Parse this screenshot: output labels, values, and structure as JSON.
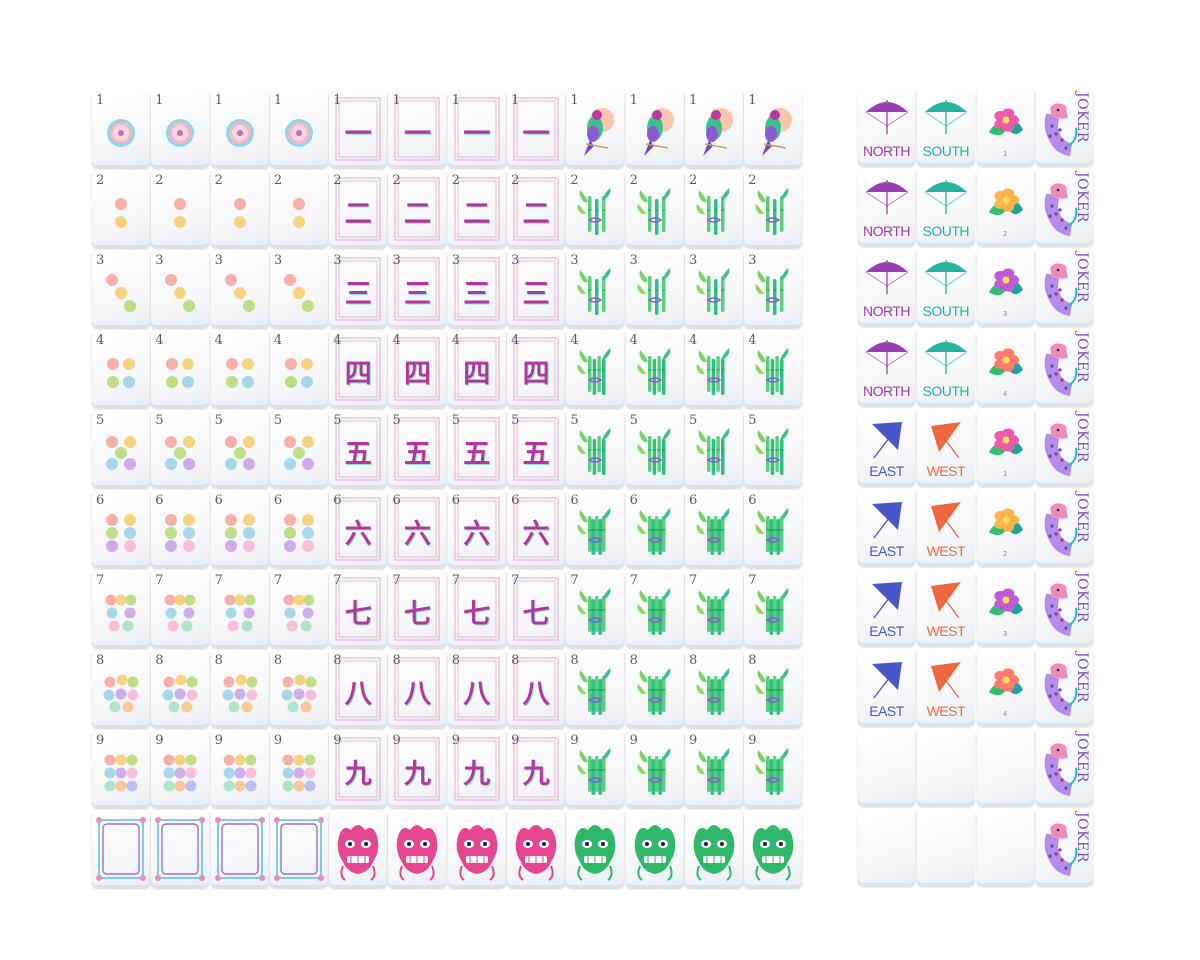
{
  "colors": {
    "tile_face": "#f6f7f9",
    "bamboo_green": "#36c47a",
    "character_pink": "#b2369b",
    "dragon_pink": "#e4478f",
    "dragon_green": "#2fb86a",
    "north_south_purple": "#9b3fb0",
    "south_teal": "#28b3a0",
    "east_blue": "#4a56c8",
    "west_orange": "#f06a3f"
  },
  "main_grid": {
    "dots": {
      "numbers": [
        "1",
        "2",
        "3",
        "4",
        "5",
        "6",
        "7",
        "8",
        "9"
      ],
      "copies": 4
    },
    "characters": {
      "numbers": [
        "1",
        "2",
        "3",
        "4",
        "5",
        "6",
        "7",
        "8",
        "9"
      ],
      "glyphs": [
        "一",
        "二",
        "三",
        "四",
        "五",
        "六",
        "七",
        "八",
        "九"
      ],
      "copies": 4
    },
    "bamboo": {
      "numbers": [
        "1",
        "2",
        "3",
        "4",
        "5",
        "6",
        "7",
        "8",
        "9"
      ],
      "one_icon": "parrot-icon",
      "icon": "bamboo-icon",
      "copies": 4
    },
    "dragons": [
      {
        "kind": "white-dragon",
        "icon": "frame-icon",
        "copies": 4
      },
      {
        "kind": "red-dragon",
        "icon": "dragon-face-icon",
        "color": "#e4478f",
        "copies": 4
      },
      {
        "kind": "green-dragon",
        "icon": "dragon-face-icon",
        "color": "#2fb86a",
        "copies": 4
      }
    ]
  },
  "side_grid": {
    "rows": [
      {
        "wind1": "NORTH",
        "wind2": "SOUTH",
        "flower_num": "1",
        "joker": "JOKER"
      },
      {
        "wind1": "NORTH",
        "wind2": "SOUTH",
        "flower_num": "2",
        "joker": "JOKER"
      },
      {
        "wind1": "NORTH",
        "wind2": "SOUTH",
        "flower_num": "3",
        "joker": "JOKER"
      },
      {
        "wind1": "NORTH",
        "wind2": "SOUTH",
        "flower_num": "4",
        "joker": "JOKER"
      },
      {
        "wind1": "EAST",
        "wind2": "WEST",
        "flower_num": "1",
        "joker": "JOKER"
      },
      {
        "wind1": "EAST",
        "wind2": "WEST",
        "flower_num": "2",
        "joker": "JOKER"
      },
      {
        "wind1": "EAST",
        "wind2": "WEST",
        "flower_num": "3",
        "joker": "JOKER"
      },
      {
        "wind1": "EAST",
        "wind2": "WEST",
        "flower_num": "4",
        "joker": "JOKER"
      },
      {
        "wind1": "",
        "wind2": "",
        "flower_num": "",
        "joker": "JOKER",
        "blank": true
      },
      {
        "wind1": "",
        "wind2": "",
        "flower_num": "",
        "joker": "JOKER",
        "blank": true
      }
    ],
    "icons": {
      "north": "umbrella-icon",
      "south": "umbrella-icon",
      "east": "umbrella-icon",
      "west": "umbrella-icon",
      "flower": "flower-icon",
      "joker": "leopard-icon"
    }
  }
}
